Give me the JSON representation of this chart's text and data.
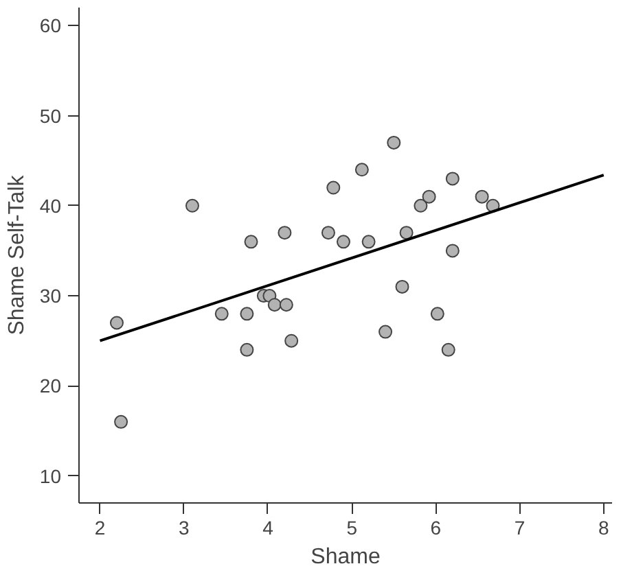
{
  "chart_data": {
    "type": "scatter",
    "xlabel": "Shame",
    "ylabel": "Shame Self-Talk",
    "xlim": [
      1.75,
      8.1
    ],
    "ylim": [
      7,
      62
    ],
    "xticks": [
      2,
      3,
      4,
      5,
      6,
      7,
      8
    ],
    "yticks": [
      10,
      20,
      30,
      40,
      50,
      60
    ],
    "grid": false,
    "series": [
      {
        "marker": "circle",
        "color": "#b3b3b3",
        "x": [
          2.2,
          2.25,
          3.1,
          3.45,
          3.75,
          3.75,
          3.8,
          3.95,
          4.02,
          4.08,
          4.2,
          4.22,
          4.28,
          4.72,
          4.78,
          4.9,
          5.12,
          5.2,
          5.4,
          5.5,
          5.6,
          5.65,
          5.82,
          5.92,
          6.02,
          6.15,
          6.2,
          6.2,
          6.55,
          6.68
        ],
        "values": [
          27,
          16,
          40,
          28,
          24,
          28,
          36,
          30,
          30,
          29,
          37,
          29,
          25,
          37,
          42,
          36,
          44,
          36,
          26,
          47,
          31,
          37,
          40,
          41,
          28,
          24,
          43,
          35,
          41,
          40
        ]
      },
      {
        "type": "line",
        "color": "#000000",
        "x": [
          2,
          8
        ],
        "values": [
          25,
          43.4
        ]
      }
    ]
  }
}
